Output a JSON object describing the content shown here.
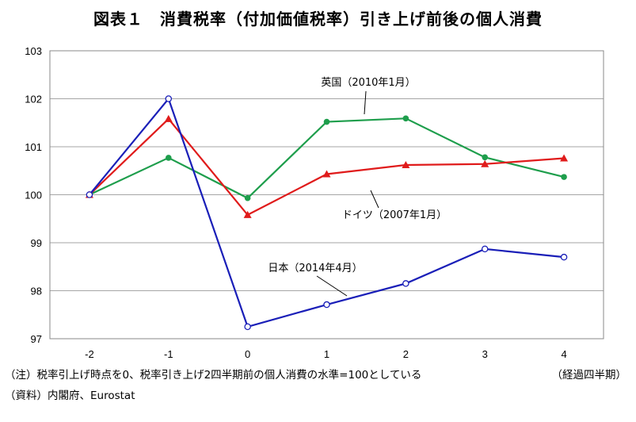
{
  "title": "図表１　消費税率（付加価値税率）引き上げ前後の個人消費",
  "notes": [
    "（注）税率引上げ時点を0、税率引き上げ2四半期前の個人消費の水準=100としている",
    "（資料）内閣府、Eurostat"
  ],
  "x_unit_label": "（経過四半期）",
  "chart_data": {
    "type": "line",
    "x": [
      -2,
      -1,
      0,
      1,
      2,
      3,
      4
    ],
    "xlabel": "",
    "ylabel": "",
    "ylim": [
      97,
      103
    ],
    "yticks": [
      97,
      98,
      99,
      100,
      101,
      102,
      103
    ],
    "grid": true,
    "series": [
      {
        "name": "英国（2010年1月）",
        "color": "#1e9e4c",
        "marker": "filled-circle",
        "values": [
          100.0,
          100.77,
          99.93,
          101.52,
          101.59,
          100.78,
          100.37
        ]
      },
      {
        "name": "ドイツ（2007年1月）",
        "color": "#e01b1b",
        "marker": "triangle",
        "values": [
          100.0,
          101.58,
          99.58,
          100.43,
          100.62,
          100.64,
          100.76
        ]
      },
      {
        "name": "日本（2014年4月）",
        "color": "#1a1fb8",
        "marker": "open-circle",
        "values": [
          100.0,
          102.0,
          97.25,
          97.71,
          98.15,
          98.87,
          98.7
        ]
      }
    ]
  }
}
